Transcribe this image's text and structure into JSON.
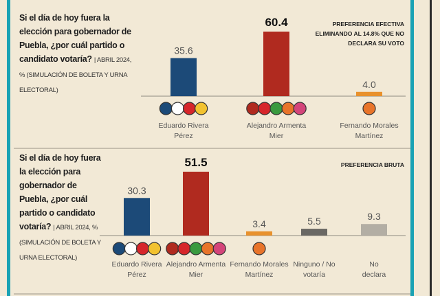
{
  "chart_data": [
    {
      "type": "bar",
      "title": "Si el día de hoy fuera la elección para gobernador de Puebla, ¿por cuál partido o candidato votaría?",
      "subtitle": "| ABRIL 2024, % (SIMULACIÓN DE BOLETA Y URNA ELECTORAL)",
      "annotation": "PREFERENCIA EFECTIVA ELIMINANDO AL 14.8% QUE NO DECLARA SU VOTO",
      "categories": [
        "Eduardo Rivera Pérez",
        "Alejandro Armenta Mier",
        "Fernando Morales Martínez"
      ],
      "values": [
        35.6,
        60.4,
        4.0
      ],
      "value_labels": [
        "35.6",
        "60.4",
        "4.0"
      ],
      "colors": [
        "#1c4a78",
        "#b02a1f",
        "#e8912d"
      ]
    },
    {
      "type": "bar",
      "title": "Si el día de hoy fuera la elección para gobernador de Puebla, ¿por cuál partido o candidato votaría?",
      "subtitle": "| ABRIL 2024, % (SIMULACIÓN DE BOLETA Y URNA ELECTORAL)",
      "annotation": "PREFERENCIA BRUTA",
      "categories": [
        "Eduardo Rivera Pérez",
        "Alejandro Armenta Mier",
        "Fernando Morales Martínez",
        "Ninguno / No votaría",
        "No declara"
      ],
      "values": [
        30.3,
        51.5,
        3.4,
        5.5,
        9.3
      ],
      "colors": [
        "#1c4a78",
        "#b02a1f",
        "#e8912d",
        "#6a6864",
        "#b3aea4"
      ]
    }
  ]
}
